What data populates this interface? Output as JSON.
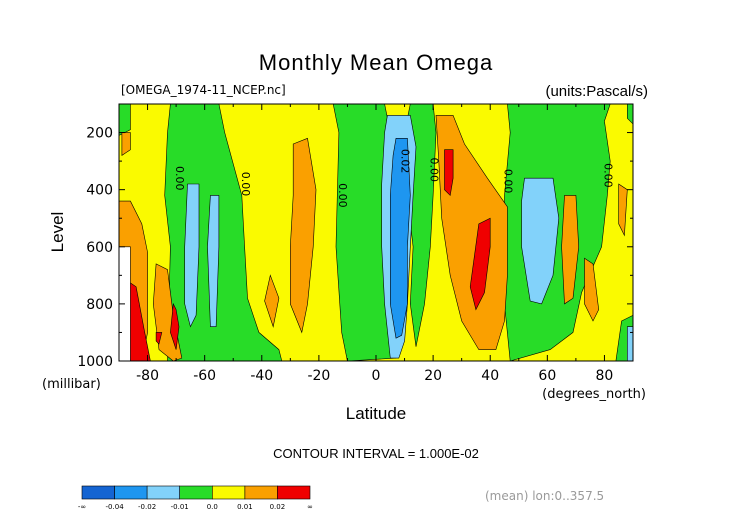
{
  "chart_data": {
    "type": "contour",
    "title": "Monthly Mean Omega",
    "file_label": "[OMEGA_1974-11_NCEP.nc]",
    "units_label": "(units:Pascal/s)",
    "xlabel": "Latitude",
    "xunit": "(degrees_north)",
    "ylabel": "Level",
    "yunit": "(millibar)",
    "xlim": [
      -90,
      90
    ],
    "ylim": [
      100,
      1000
    ],
    "y_inverted": true,
    "x_ticks": [
      -80,
      -60,
      -40,
      -20,
      0,
      20,
      40,
      60,
      80
    ],
    "x_tick_labels": [
      "-80",
      "-60",
      "-40",
      "-20",
      "0",
      "20",
      "40",
      "60",
      "80"
    ],
    "y_ticks": [
      200,
      400,
      600,
      800,
      1000
    ],
    "y_tick_labels": [
      "200",
      "400",
      "600",
      "800",
      "1000"
    ],
    "contour_interval_text": "CONTOUR INTERVAL = 1.000E-02",
    "footer_text": "(mean) lon:0..357.5",
    "contour_labels": [
      {
        "text": "0.00",
        "lat": -70,
        "level": 360
      },
      {
        "text": "0.00",
        "lat": -47,
        "level": 380
      },
      {
        "text": "0.00",
        "lat": -13,
        "level": 420
      },
      {
        "text": "0.02",
        "lat": 9,
        "level": 300
      },
      {
        "text": "0.00",
        "lat": 19,
        "level": 330
      },
      {
        "text": "0.00",
        "lat": 45,
        "level": 370
      },
      {
        "text": "0.00",
        "lat": 80,
        "level": 350
      }
    ],
    "colorbar": {
      "colors": [
        "#1464d2",
        "#1e96f0",
        "#82d2fa",
        "#28dc28",
        "#fafa00",
        "#faa000",
        "#f00000"
      ],
      "tick_labels": [
        "-∞",
        "-0.04",
        "-0.02",
        "-0.01",
        "0.0",
        "0.01",
        "0.02",
        "∞"
      ]
    },
    "regions": [
      {
        "color": "#fafa00",
        "points": [
          [
            -90,
            100
          ],
          [
            90,
            100
          ],
          [
            90,
            1000
          ],
          [
            -90,
            1000
          ]
        ]
      },
      {
        "color": "#28dc28",
        "points": [
          [
            -90,
            100
          ],
          [
            -86,
            100
          ],
          [
            -86,
            190
          ],
          [
            -90,
            210
          ]
        ]
      },
      {
        "color": "#28dc28",
        "points": [
          [
            -72,
            100
          ],
          [
            -55,
            100
          ],
          [
            -53,
            200
          ],
          [
            -47,
            420
          ],
          [
            -46,
            600
          ],
          [
            -45,
            780
          ],
          [
            -41,
            900
          ],
          [
            -34,
            960
          ],
          [
            -33,
            1000
          ],
          [
            -73,
            1000
          ],
          [
            -72,
            600
          ],
          [
            -74,
            420
          ],
          [
            -73,
            200
          ]
        ]
      },
      {
        "color": "#28dc28",
        "points": [
          [
            -15,
            100
          ],
          [
            3,
            100
          ],
          [
            5,
            200
          ],
          [
            7,
            420
          ],
          [
            8,
            900
          ],
          [
            7,
            990
          ],
          [
            -10,
            1000
          ],
          [
            -12,
            900
          ],
          [
            -14,
            600
          ],
          [
            -13,
            200
          ]
        ]
      },
      {
        "color": "#28dc28",
        "points": [
          [
            12,
            100
          ],
          [
            20,
            100
          ],
          [
            21,
            200
          ],
          [
            20,
            420
          ],
          [
            19,
            600
          ],
          [
            17,
            800
          ],
          [
            14,
            950
          ],
          [
            12,
            800
          ],
          [
            13,
            600
          ],
          [
            11,
            420
          ],
          [
            10,
            200
          ]
        ]
      },
      {
        "color": "#28dc28",
        "points": [
          [
            46,
            100
          ],
          [
            82,
            100
          ],
          [
            80,
            160
          ],
          [
            82,
            300
          ],
          [
            81,
            420
          ],
          [
            79,
            600
          ],
          [
            72,
            760
          ],
          [
            69,
            900
          ],
          [
            61,
            960
          ],
          [
            47,
            1000
          ],
          [
            45,
            800
          ],
          [
            45,
            420
          ],
          [
            47,
            200
          ]
        ]
      },
      {
        "color": "#28dc28",
        "points": [
          [
            88,
            100
          ],
          [
            90,
            100
          ],
          [
            90,
            170
          ],
          [
            88,
            150
          ]
        ]
      },
      {
        "color": "#28dc28",
        "points": [
          [
            86,
            860
          ],
          [
            90,
            840
          ],
          [
            90,
            1000
          ],
          [
            84,
            1000
          ]
        ]
      },
      {
        "color": "#28dc28",
        "points": [
          [
            -90,
            880
          ],
          [
            -87,
            860
          ],
          [
            -86,
            1000
          ],
          [
            -90,
            1000
          ]
        ]
      },
      {
        "color": "#82d2fa",
        "points": [
          [
            4,
            140
          ],
          [
            12,
            140
          ],
          [
            14,
            250
          ],
          [
            13,
            420
          ],
          [
            12,
            600
          ],
          [
            11,
            800
          ],
          [
            10,
            930
          ],
          [
            8,
            990
          ],
          [
            5,
            990
          ],
          [
            3,
            800
          ],
          [
            2,
            600
          ],
          [
            2,
            380
          ],
          [
            3,
            200
          ]
        ]
      },
      {
        "color": "#1e96f0",
        "points": [
          [
            7,
            220
          ],
          [
            11,
            220
          ],
          [
            12,
            420
          ],
          [
            11,
            600
          ],
          [
            11,
            800
          ],
          [
            9,
            910
          ],
          [
            7,
            920
          ],
          [
            5,
            800
          ],
          [
            5,
            600
          ],
          [
            5,
            420
          ],
          [
            6,
            280
          ]
        ]
      },
      {
        "color": "#82d2fa",
        "points": [
          [
            -66,
            380
          ],
          [
            -62,
            380
          ],
          [
            -62,
            600
          ],
          [
            -63,
            840
          ],
          [
            -65,
            880
          ],
          [
            -67,
            800
          ],
          [
            -67,
            600
          ]
        ]
      },
      {
        "color": "#82d2fa",
        "points": [
          [
            -58,
            420
          ],
          [
            -55,
            420
          ],
          [
            -55,
            600
          ],
          [
            -56,
            880
          ],
          [
            -58,
            880
          ],
          [
            -59,
            600
          ]
        ]
      },
      {
        "color": "#82d2fa",
        "points": [
          [
            52,
            360
          ],
          [
            62,
            360
          ],
          [
            64,
            500
          ],
          [
            62,
            700
          ],
          [
            58,
            800
          ],
          [
            54,
            790
          ],
          [
            51,
            600
          ],
          [
            51,
            440
          ]
        ]
      },
      {
        "color": "#82d2fa",
        "points": [
          [
            88,
            880
          ],
          [
            90,
            880
          ],
          [
            90,
            1000
          ],
          [
            88,
            1000
          ]
        ]
      },
      {
        "color": "#faa000",
        "points": [
          [
            -90,
            440
          ],
          [
            -86,
            440
          ],
          [
            -82,
            520
          ],
          [
            -80,
            620
          ],
          [
            -80,
            900
          ],
          [
            -82,
            1000
          ],
          [
            -90,
            1000
          ]
        ]
      },
      {
        "color": "#faa000",
        "points": [
          [
            -77,
            660
          ],
          [
            -73,
            680
          ],
          [
            -71,
            840
          ],
          [
            -68,
            990
          ],
          [
            -71,
            1000
          ],
          [
            -76,
            960
          ],
          [
            -78,
            800
          ]
        ]
      },
      {
        "color": "#faa000",
        "points": [
          [
            -29,
            240
          ],
          [
            -24,
            220
          ],
          [
            -21,
            400
          ],
          [
            -22,
            600
          ],
          [
            -24,
            800
          ],
          [
            -26,
            900
          ],
          [
            -30,
            800
          ],
          [
            -30,
            600
          ],
          [
            -29,
            420
          ]
        ]
      },
      {
        "color": "#faa000",
        "points": [
          [
            -37,
            700
          ],
          [
            -34,
            780
          ],
          [
            -36,
            880
          ],
          [
            -39,
            790
          ]
        ]
      },
      {
        "color": "#faa000",
        "points": [
          [
            21,
            140
          ],
          [
            27,
            140
          ],
          [
            31,
            240
          ],
          [
            39,
            360
          ],
          [
            46,
            460
          ],
          [
            46,
            700
          ],
          [
            45,
            860
          ],
          [
            42,
            960
          ],
          [
            36,
            960
          ],
          [
            30,
            860
          ],
          [
            26,
            700
          ],
          [
            23,
            500
          ],
          [
            22,
            300
          ]
        ]
      },
      {
        "color": "#faa000",
        "points": [
          [
            66,
            420
          ],
          [
            70,
            420
          ],
          [
            71,
            600
          ],
          [
            69,
            780
          ],
          [
            66,
            800
          ],
          [
            65,
            600
          ]
        ]
      },
      {
        "color": "#faa000",
        "points": [
          [
            73,
            640
          ],
          [
            76,
            660
          ],
          [
            78,
            820
          ],
          [
            76,
            860
          ],
          [
            73,
            800
          ]
        ]
      },
      {
        "color": "#faa000",
        "points": [
          [
            85,
            380
          ],
          [
            88,
            400
          ],
          [
            87,
            560
          ],
          [
            85,
            520
          ]
        ]
      },
      {
        "color": "#faa000",
        "points": [
          [
            -89,
            200
          ],
          [
            -86,
            200
          ],
          [
            -86,
            260
          ],
          [
            -89,
            280
          ]
        ]
      },
      {
        "color": "#f00000",
        "points": [
          [
            -87,
            720
          ],
          [
            -84,
            740
          ],
          [
            -81,
            900
          ],
          [
            -79,
            1000
          ],
          [
            -86,
            1000
          ],
          [
            -87,
            900
          ]
        ]
      },
      {
        "color": "#f00000",
        "points": [
          [
            -71,
            800
          ],
          [
            -70,
            820
          ],
          [
            -69,
            880
          ],
          [
            -70,
            960
          ],
          [
            -72,
            900
          ]
        ]
      },
      {
        "color": "#f00000",
        "points": [
          [
            -77,
            900
          ],
          [
            -75,
            900
          ],
          [
            -76,
            940
          ],
          [
            -77,
            930
          ]
        ]
      },
      {
        "color": "#f00000",
        "points": [
          [
            24,
            260
          ],
          [
            27,
            260
          ],
          [
            27,
            360
          ],
          [
            26,
            420
          ],
          [
            24,
            400
          ]
        ]
      },
      {
        "color": "#f00000",
        "points": [
          [
            36,
            520
          ],
          [
            40,
            500
          ],
          [
            40,
            600
          ],
          [
            38,
            760
          ],
          [
            35,
            820
          ],
          [
            33,
            740
          ]
        ]
      },
      {
        "color": "#ffffff",
        "points": [
          [
            -90,
            600
          ],
          [
            -86,
            600
          ],
          [
            -86,
            1000
          ],
          [
            -90,
            1000
          ]
        ]
      }
    ]
  }
}
